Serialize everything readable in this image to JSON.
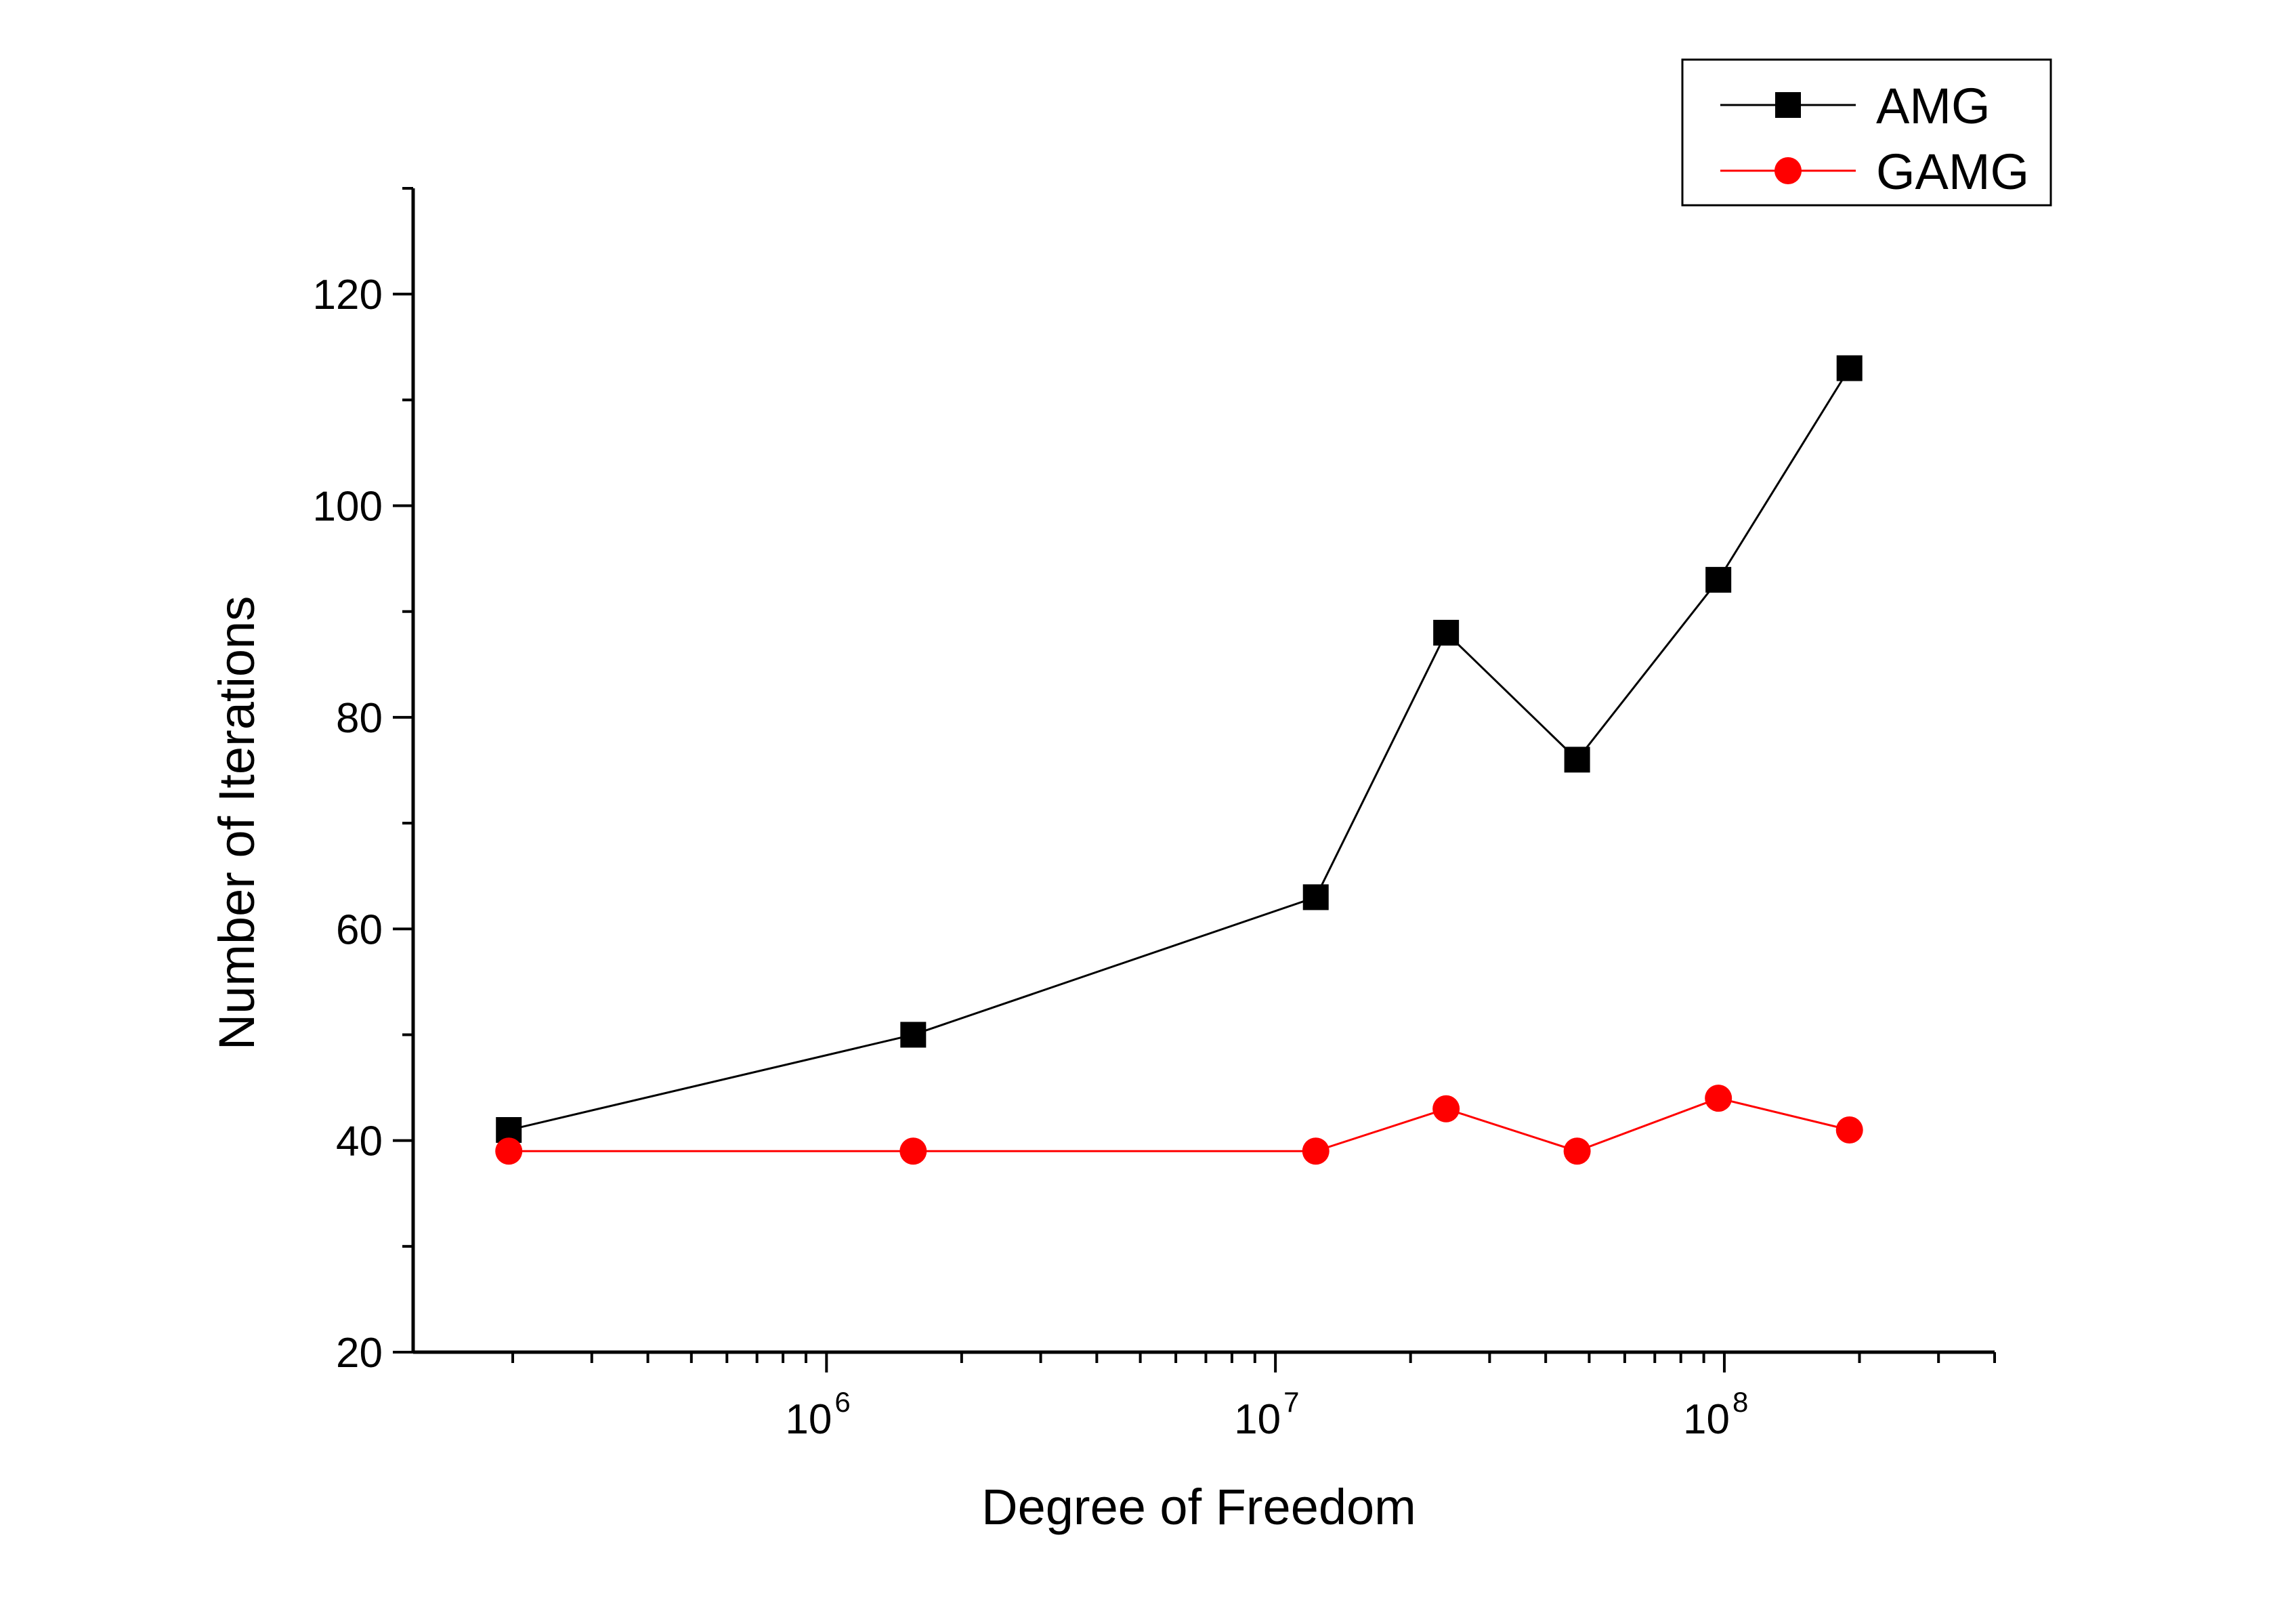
{
  "chart_data": {
    "type": "line",
    "title": "",
    "xlabel": "Degree of Freedom",
    "ylabel": "Number of Iterations",
    "x_scale": "log",
    "xlim": [
      120000,
      400000000
    ],
    "ylim": [
      20,
      130
    ],
    "y_ticks": [
      20,
      40,
      60,
      80,
      100,
      120
    ],
    "y_minor_ticks": [
      30,
      50,
      70,
      90,
      110,
      130
    ],
    "x_tick_labels": [
      {
        "base": "10",
        "exp": "6",
        "value": 1000000
      },
      {
        "base": "10",
        "exp": "7",
        "value": 10000000
      },
      {
        "base": "10",
        "exp": "8",
        "value": 100000000
      }
    ],
    "legend_position": "top-right",
    "grid": false,
    "x": [
      196000,
      1560000,
      12300000,
      24000000,
      47000000,
      97000000,
      190000000
    ],
    "series": [
      {
        "name": "AMG",
        "color": "#000000",
        "marker": "square",
        "values": [
          41,
          50,
          63,
          88,
          76,
          93,
          113
        ]
      },
      {
        "name": "GAMG",
        "color": "#ff0000",
        "marker": "circle",
        "values": [
          39,
          39,
          39,
          43,
          39,
          44,
          41
        ]
      }
    ]
  }
}
